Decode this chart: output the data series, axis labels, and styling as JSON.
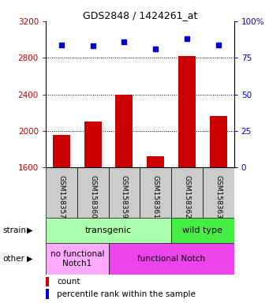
{
  "title": "GDS2848 / 1424261_at",
  "samples": [
    "GSM158357",
    "GSM158360",
    "GSM158359",
    "GSM158361",
    "GSM158362",
    "GSM158363"
  ],
  "counts": [
    1960,
    2100,
    2400,
    1720,
    2820,
    2160
  ],
  "percentiles": [
    84,
    83,
    86,
    81,
    88,
    84
  ],
  "ylim_left": [
    1600,
    3200
  ],
  "ylim_right": [
    0,
    100
  ],
  "yticks_left": [
    1600,
    2000,
    2400,
    2800,
    3200
  ],
  "yticks_right": [
    0,
    25,
    50,
    75,
    100
  ],
  "bar_color": "#cc0000",
  "dot_color": "#0000cc",
  "strain_labels": [
    {
      "label": "transgenic",
      "span": [
        0,
        4
      ],
      "color": "#aaffaa"
    },
    {
      "label": "wild type",
      "span": [
        4,
        6
      ],
      "color": "#44ee44"
    }
  ],
  "other_labels": [
    {
      "label": "no functional\nNotch1",
      "span": [
        0,
        2
      ],
      "color": "#ffaaff"
    },
    {
      "label": "functional Notch",
      "span": [
        2,
        6
      ],
      "color": "#ee44ee"
    }
  ],
  "legend_count_label": "count",
  "legend_pct_label": "percentile rank within the sample",
  "tick_label_color_left": "#cc0000",
  "tick_label_color_right": "#0000cc",
  "sample_box_color": "#cccccc",
  "fig_width": 3.41,
  "fig_height": 3.84,
  "dpi": 100
}
